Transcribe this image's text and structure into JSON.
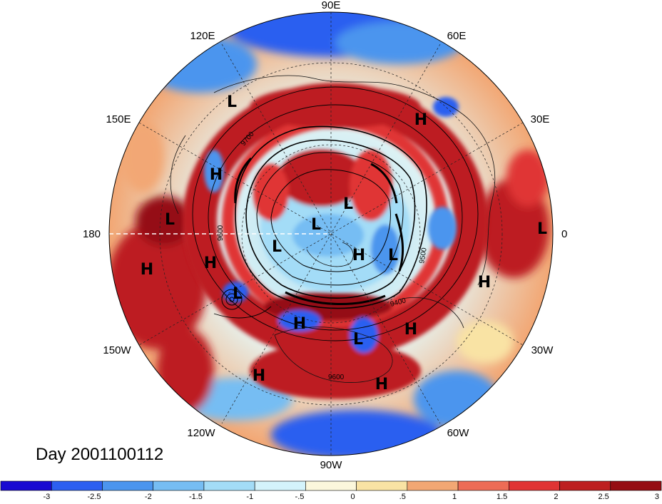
{
  "map": {
    "projection": "north-polar-stereographic",
    "longitude_labels": [
      "90E",
      "60E",
      "30E",
      "0",
      "30W",
      "60W",
      "90W",
      "120W",
      "150W",
      "180",
      "150E",
      "120E"
    ],
    "pressure_systems": [
      {
        "type": "L"
      },
      {
        "type": "H"
      },
      {
        "type": "H"
      },
      {
        "type": "L"
      },
      {
        "type": "L"
      },
      {
        "type": "L"
      },
      {
        "type": "L"
      },
      {
        "type": "H"
      },
      {
        "type": "L"
      },
      {
        "type": "L"
      },
      {
        "type": "H"
      },
      {
        "type": "H"
      },
      {
        "type": "L"
      },
      {
        "type": "H"
      },
      {
        "type": "H"
      },
      {
        "type": "L"
      },
      {
        "type": "H"
      },
      {
        "type": "H"
      },
      {
        "type": "H"
      }
    ],
    "contour_labels": [
      "9700",
      "9600",
      "9500",
      "9400",
      "9600"
    ]
  },
  "day_label": "Day 2001100112",
  "colorbar": {
    "colors": [
      "#1a0bd1",
      "#2c5ff0",
      "#4b95ee",
      "#76bdf3",
      "#a3dcf7",
      "#d4f3fb",
      "#fbf7dc",
      "#f9e3a4",
      "#f2a774",
      "#ed6c56",
      "#e03434",
      "#bd1f20",
      "#950d13"
    ],
    "tick_labels": [
      "-3",
      "-2.5",
      "-2",
      "-1.5",
      "-1",
      "-.5",
      "0",
      ".5",
      "1",
      "1.5",
      "2",
      "2.5",
      "3"
    ]
  },
  "colors": {
    "warm_band": "#bd1f20",
    "cold": "#2c5ff0",
    "neutral": "#fbf7dc"
  }
}
